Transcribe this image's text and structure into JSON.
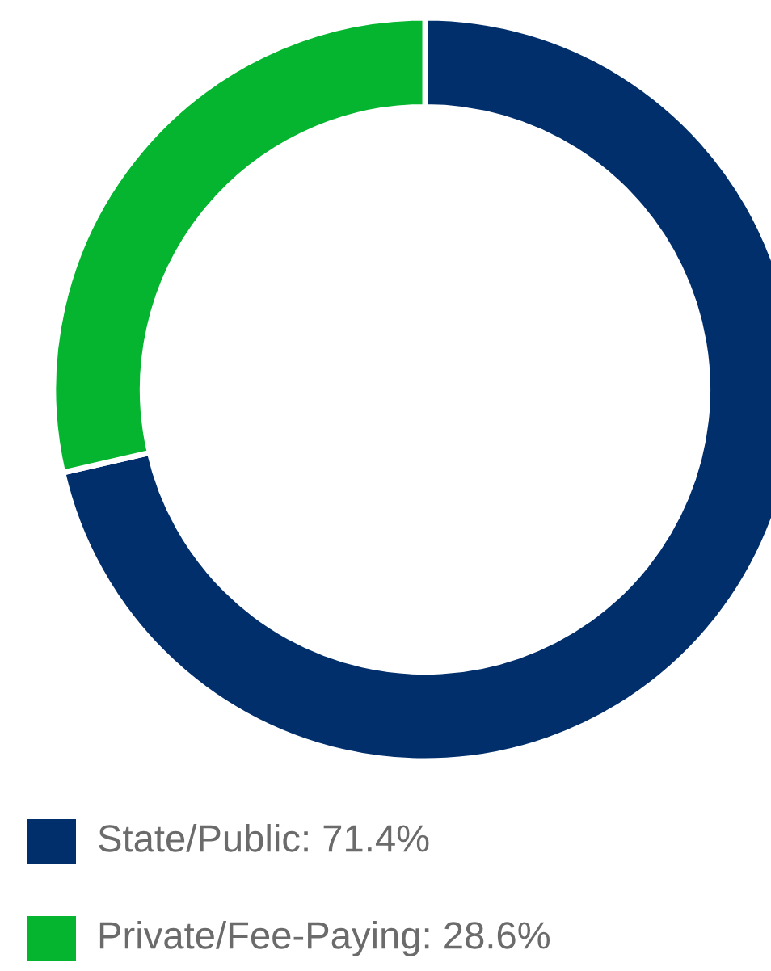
{
  "chart_data": {
    "type": "donut",
    "categories": [
      "State/Public",
      "Private/Fee-Paying"
    ],
    "values": [
      71.4,
      28.6
    ],
    "value_labels": [
      "71.4%",
      "28.6%"
    ],
    "colors": [
      "#002f6c",
      "#05b52f"
    ],
    "legend": "bottom left"
  }
}
